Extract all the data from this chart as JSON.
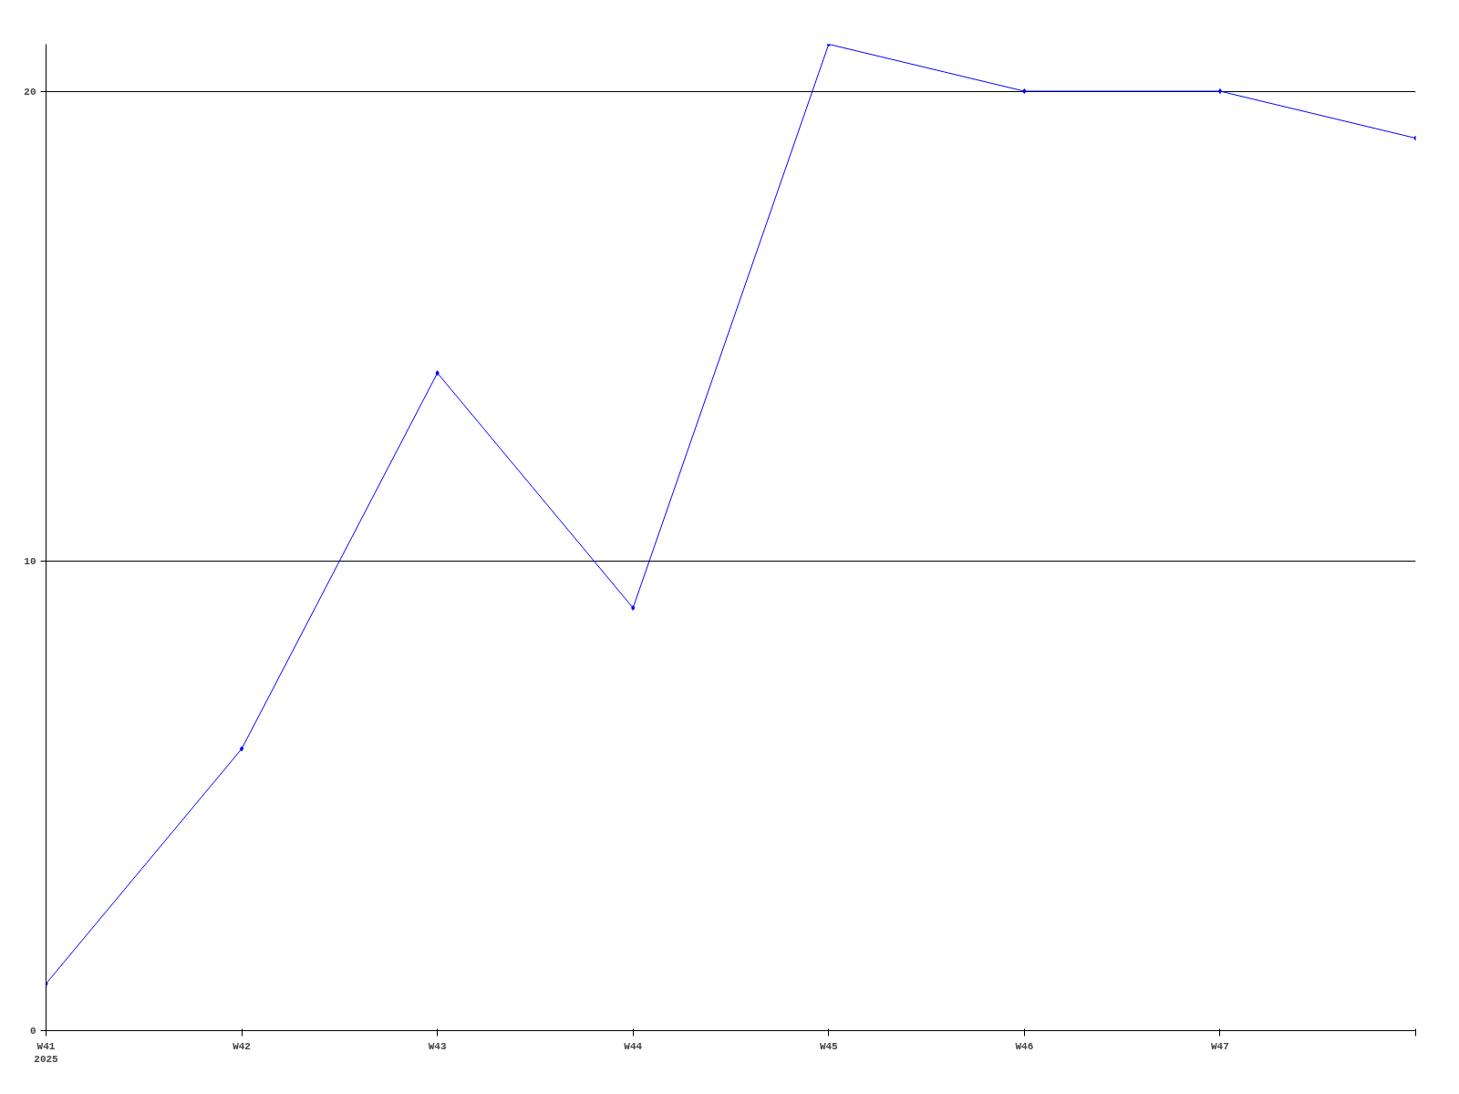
{
  "chart_data": {
    "type": "line",
    "categories": [
      "W41\n2025",
      "W42",
      "W43",
      "W44",
      "W45",
      "W46",
      "W47",
      null
    ],
    "series": [
      {
        "color": "#0000ff",
        "values": [
          1,
          6,
          14,
          9,
          21,
          20,
          20,
          19
        ]
      }
    ],
    "ylim": [
      0,
      21
    ],
    "yticks": [
      0,
      10,
      20
    ],
    "grid": "y",
    "marker": "diamond",
    "line_style": "solid"
  }
}
